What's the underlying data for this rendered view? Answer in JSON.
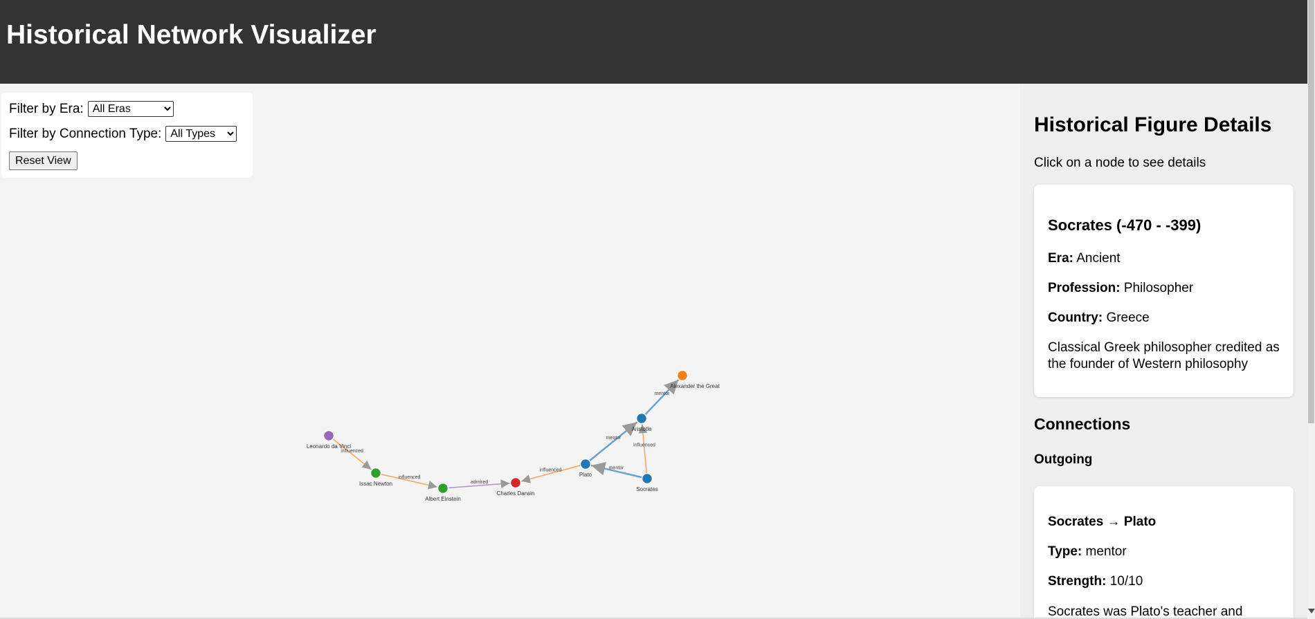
{
  "header": {
    "title": "Historical Network Visualizer"
  },
  "controls": {
    "era_label": "Filter by Era:",
    "era_selected": "All Eras",
    "type_label": "Filter by Connection Type:",
    "type_selected": "All Types",
    "reset_label": "Reset View"
  },
  "network": {
    "nodes": [
      {
        "id": "socrates",
        "name": "Socrates",
        "color": "#1f77b4"
      },
      {
        "id": "plato",
        "name": "Plato",
        "color": "#1f77b4"
      },
      {
        "id": "aristotle",
        "name": "Aristotle",
        "color": "#1f77b4"
      },
      {
        "id": "alexander",
        "name": "Alexander the Great",
        "color": "#ff7f0e"
      },
      {
        "id": "darwin",
        "name": "Charles Darwin",
        "color": "#d62728"
      },
      {
        "id": "einstein",
        "name": "Albert Einstein",
        "color": "#2ca02c"
      },
      {
        "id": "newton",
        "name": "Issac Newton",
        "color": "#2ca02c"
      },
      {
        "id": "davinci",
        "name": "Leonardo da Vinci",
        "color": "#9467bd"
      }
    ],
    "links": [
      {
        "source": "socrates",
        "target": "plato",
        "type": "mentor",
        "color": "#1f77b4"
      },
      {
        "source": "plato",
        "target": "aristotle",
        "type": "mentor",
        "color": "#1f77b4"
      },
      {
        "source": "aristotle",
        "target": "alexander",
        "type": "mentor",
        "color": "#1f77b4"
      },
      {
        "source": "socrates",
        "target": "aristotle",
        "type": "influenced",
        "color": "#ff7f0e"
      },
      {
        "source": "plato",
        "target": "darwin",
        "type": "influenced",
        "color": "#ff7f0e"
      },
      {
        "source": "einstein",
        "target": "darwin",
        "type": "admired",
        "color": "#9467bd"
      },
      {
        "source": "newton",
        "target": "einstein",
        "type": "influenced",
        "color": "#ff7f0e"
      },
      {
        "source": "davinci",
        "target": "newton",
        "type": "influenced",
        "color": "#ff7f0e"
      }
    ]
  },
  "sidebar": {
    "title": "Historical Figure Details",
    "hint": "Click on a node to see details",
    "figure": {
      "name": "Socrates (-470 - -399)",
      "era_label": "Era:",
      "era": "Ancient",
      "profession_label": "Profession:",
      "profession": "Philosopher",
      "country_label": "Country:",
      "country": "Greece",
      "description": "Classical Greek philosopher credited as the founder of Western philosophy"
    },
    "connections_heading": "Connections",
    "outgoing_heading": "Outgoing",
    "connection": {
      "title": "Socrates → Plato",
      "type_label": "Type:",
      "type": "mentor",
      "strength_label": "Strength:",
      "strength": "10/10",
      "description": "Socrates was Plato's teacher and"
    }
  }
}
